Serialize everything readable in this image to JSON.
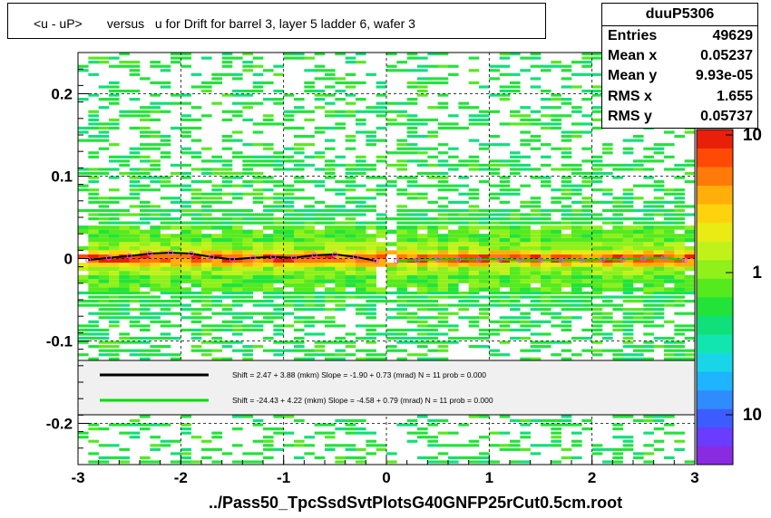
{
  "title": "<u - uP>       versus   u for Drift for barrel 3, layer 5 ladder 6, wafer 3",
  "stats": {
    "name": "duuP5306",
    "rows": [
      {
        "key": "Entries",
        "value": "49629"
      },
      {
        "key": "Mean x",
        "value": "0.05237"
      },
      {
        "key": "Mean y",
        "value": "9.93e-05"
      },
      {
        "key": "RMS x",
        "value": "1.655"
      },
      {
        "key": "RMS y",
        "value": "0.05737"
      }
    ]
  },
  "footer": "../Pass50_TpcSsdSvtPlotsG40GNFP25rCut0.5cm.root",
  "legend": [
    {
      "color": "#000000",
      "text": "Shift =     2.47 + 3.88 (mkm) Slope =    -1.90 + 0.73 (mrad)  N = 11 prob = 0.000"
    },
    {
      "color": "#00dd00",
      "text": "Shift =   -24.43 + 4.22 (mkm) Slope =    -4.58 + 0.79 (mrad)  N = 11 prob = 0.000"
    }
  ],
  "colorbar_labels": [
    "10",
    "1",
    "10"
  ],
  "chart_data": {
    "type": "heatmap",
    "title": "<u - uP>       versus   u for Drift for barrel 3, layer 5 ladder 6, wafer 3",
    "xlabel": "",
    "ylabel": "",
    "xlim": [
      -3,
      3
    ],
    "ylim": [
      -0.25,
      0.25
    ],
    "xticks": [
      -3,
      -2,
      -1,
      0,
      1,
      2,
      3
    ],
    "yticks": [
      -0.2,
      -0.1,
      0,
      0.1,
      0.2
    ],
    "grid": true,
    "series": [
      {
        "x": [
          -2.9,
          -2.7,
          -2.5,
          -2.3,
          -2.1,
          -1.9,
          -1.7,
          -1.5,
          -1.3,
          -1.1,
          -0.9,
          -0.7,
          -0.5,
          -0.3,
          -0.1
        ],
        "y": [
          -0.002,
          0.001,
          0.003,
          0.006,
          0.007,
          0.006,
          0.002,
          -0.001,
          0.001,
          0.002,
          0.001,
          0.004,
          0.005,
          0.002,
          -0.003
        ]
      },
      {
        "x": [
          0.1,
          0.3,
          0.5,
          0.7,
          0.9,
          1.1,
          1.3,
          1.5,
          1.7,
          1.9,
          2.1,
          2.3,
          2.5,
          2.7,
          2.9
        ],
        "y": [
          -0.003,
          -0.002,
          -0.001,
          -0.001,
          -0.001,
          -0.001,
          -0.002,
          -0.002,
          -0.002,
          -0.002,
          -0.001,
          -0.001,
          0.0,
          0.001,
          -0.002
        ]
      }
    ]
  }
}
